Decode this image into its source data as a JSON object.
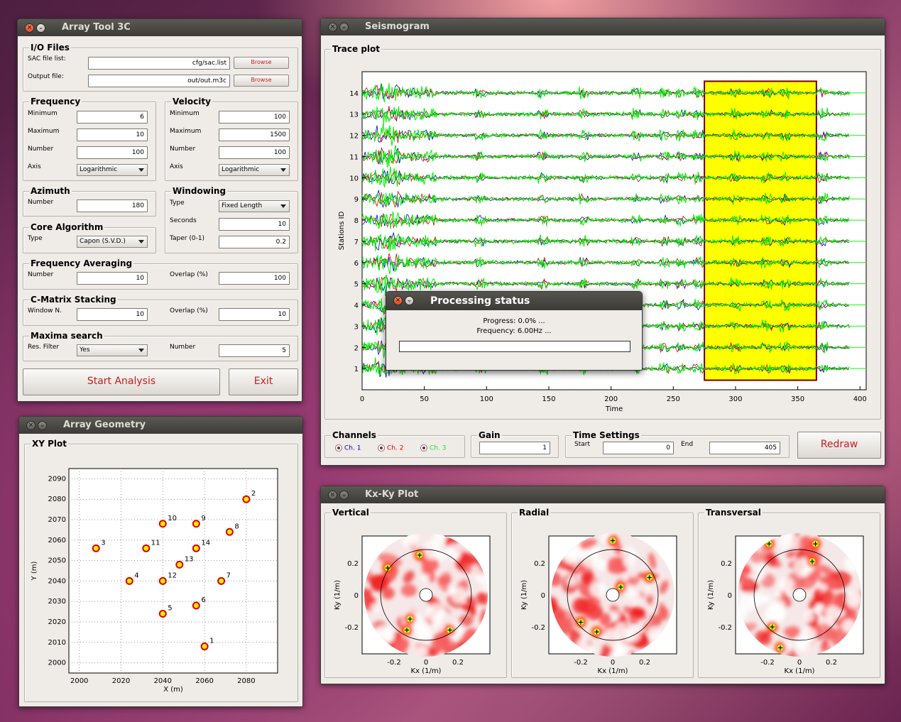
{
  "array_tool": {
    "title": "Array Tool 3C",
    "io": {
      "label": "I/O Files",
      "sac_label": "SAC file list:",
      "sac_value": "cfg/sac.list",
      "out_label": "Output file:",
      "out_value": "out/out.m3c",
      "browse": "Browse"
    },
    "frequency": {
      "label": "Frequency",
      "min_label": "Minimum",
      "min": "6",
      "max_label": "Maximum",
      "max": "10",
      "num_label": "Number",
      "num": "100",
      "axis_label": "Axis",
      "axis": "Logarithmic"
    },
    "velocity": {
      "label": "Velocity",
      "min_label": "Minimum",
      "min": "100",
      "max_label": "Maximum",
      "max": "1500",
      "num_label": "Number",
      "num": "100",
      "axis_label": "Axis",
      "axis": "Logarithmic"
    },
    "azimuth": {
      "label": "Azimuth",
      "num_label": "Number",
      "num": "180"
    },
    "windowing": {
      "label": "Windowing",
      "type_label": "Type",
      "type": "Fixed Length",
      "sec_label": "Seconds",
      "sec": "10",
      "taper_label": "Taper (0-1)",
      "taper": "0.2"
    },
    "core": {
      "label": "Core Algorithm",
      "type_label": "Type",
      "type": "Capon (S.V.D.)"
    },
    "freq_avg": {
      "label": "Frequency Averaging",
      "num_label": "Number",
      "num": "10",
      "overlap_label": "Overlap (%)",
      "overlap": "100"
    },
    "cmatrix": {
      "label": "C-Matrix Stacking",
      "win_label": "Window N.",
      "win": "10",
      "overlap_label": "Overlap (%)",
      "overlap": "10"
    },
    "maxima": {
      "label": "Maxima search",
      "res_label": "Res. Filter",
      "res": "Yes",
      "num_label": "Number",
      "num": "5"
    },
    "start_label": "Start Analysis",
    "exit_label": "Exit"
  },
  "array_geometry": {
    "title": "Array Geometry",
    "plot_label": "XY Plot",
    "xlabel": "X (m)",
    "ylabel": "Y (m)",
    "xticks": [
      "2000",
      "2020",
      "2040",
      "2060",
      "2080"
    ],
    "yticks": [
      "2000",
      "2010",
      "2020",
      "2030",
      "2040",
      "2050",
      "2060",
      "2070",
      "2080",
      "2090"
    ]
  },
  "seismogram": {
    "title": "Seismogram",
    "plot_label": "Trace plot",
    "xlabel": "Time",
    "ylabel": "Stations ID",
    "xticks": [
      "0",
      "50",
      "100",
      "150",
      "200",
      "250",
      "300",
      "350",
      "400"
    ],
    "yticks": [
      "1",
      "2",
      "3",
      "4",
      "5",
      "6",
      "7",
      "8",
      "9",
      "10",
      "11",
      "12",
      "13",
      "14"
    ],
    "channels": {
      "label": "Channels",
      "items": [
        "Ch. 1",
        "Ch. 2",
        "Ch. 3"
      ]
    },
    "gain": {
      "label": "Gain",
      "value": "1"
    },
    "time": {
      "label": "Time Settings",
      "start_label": "Start",
      "start": "0",
      "end_label": "End",
      "end": "405"
    },
    "redraw_label": "Redraw"
  },
  "kxky": {
    "title": "Kx-Ky Plot",
    "panels": [
      "Vertical",
      "Radial",
      "Transversal"
    ],
    "xlabel": "Kx (1/m)",
    "ylabel": "Ky (1/m)",
    "xticks": [
      "-0.2",
      "0",
      "0.2"
    ],
    "yticks": [
      "0.2",
      "0",
      "-0.2"
    ]
  },
  "processing": {
    "title": "Processing status",
    "progress": "Progress: 0.0% ...",
    "frequency": "Frequency: 6.00Hz ..."
  },
  "chart_data": [
    {
      "type": "scatter",
      "title": "",
      "xlabel": "X (m)",
      "ylabel": "Y (m)",
      "xlim": [
        1995,
        2095
      ],
      "ylim": [
        1995,
        2095
      ],
      "grid": true,
      "points": [
        {
          "id": "1",
          "x": 2060,
          "y": 2008
        },
        {
          "id": "2",
          "x": 2080,
          "y": 2080
        },
        {
          "id": "3",
          "x": 2008,
          "y": 2056
        },
        {
          "id": "4",
          "x": 2024,
          "y": 2040
        },
        {
          "id": "5",
          "x": 2040,
          "y": 2024
        },
        {
          "id": "6",
          "x": 2056,
          "y": 2028
        },
        {
          "id": "7",
          "x": 2068,
          "y": 2040
        },
        {
          "id": "8",
          "x": 2072,
          "y": 2064
        },
        {
          "id": "9",
          "x": 2056,
          "y": 2068
        },
        {
          "id": "10",
          "x": 2040,
          "y": 2068
        },
        {
          "id": "11",
          "x": 2032,
          "y": 2056
        },
        {
          "id": "12",
          "x": 2040,
          "y": 2040
        },
        {
          "id": "13",
          "x": 2048,
          "y": 2048
        },
        {
          "id": "14",
          "x": 2056,
          "y": 2056
        }
      ]
    },
    {
      "type": "line",
      "title": "",
      "xlabel": "Time",
      "ylabel": "Stations ID",
      "xlim": [
        0,
        405
      ],
      "ylim": [
        0,
        15
      ],
      "grid": false,
      "stations": [
        1,
        2,
        3,
        4,
        5,
        6,
        7,
        8,
        9,
        10,
        11,
        12,
        13,
        14
      ],
      "series": [
        {
          "name": "Ch. 1",
          "color": "#0000cc"
        },
        {
          "name": "Ch. 2",
          "color": "#dd0000"
        },
        {
          "name": "Ch. 3",
          "color": "#00ee00"
        }
      ],
      "window": {
        "start": 275,
        "end": 365
      }
    }
  ],
  "colors": {
    "highlight": "#ffff00",
    "marker_face": "#ffee00",
    "marker_edge": "#dd0000",
    "trace_green": "#22ee22"
  }
}
